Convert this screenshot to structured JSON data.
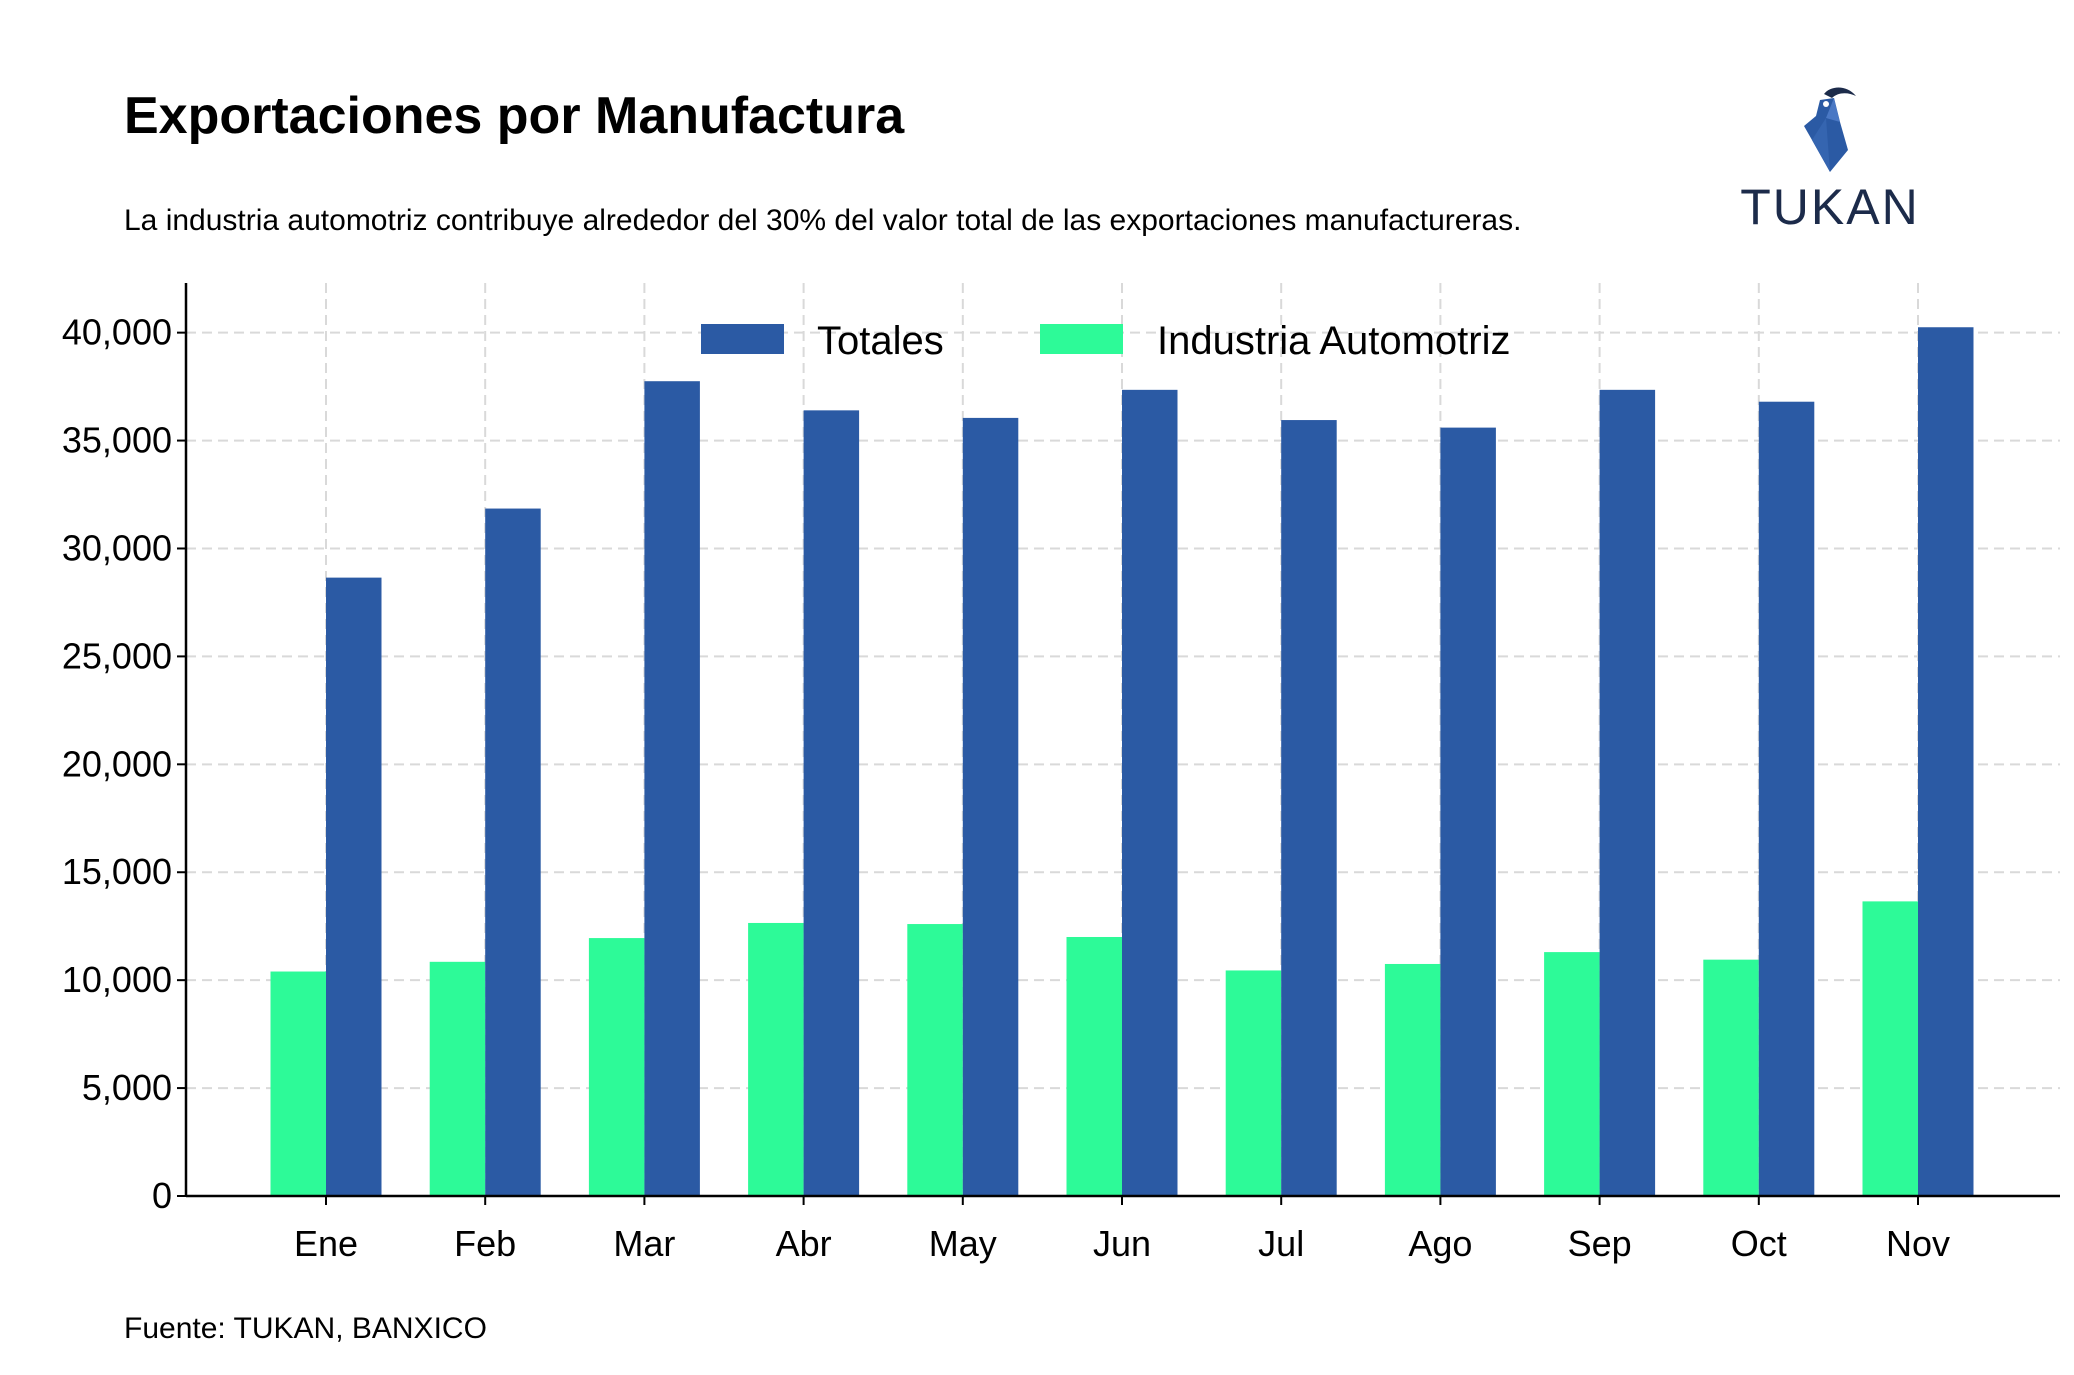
{
  "header": {
    "title": "Exportaciones por Manufactura",
    "subtitle": "La industria automotriz contribuye alrededor del 30% del valor total de las exportaciones manufactureras."
  },
  "footer": {
    "source": "Fuente: TUKAN, BANXICO"
  },
  "logo": {
    "text": "TUKAN",
    "icon": "toucan-logo-icon",
    "color": "#2b5aa4"
  },
  "chart_data": {
    "type": "bar",
    "title": "Exportaciones por Manufactura",
    "xlabel": "",
    "ylabel": "",
    "categories": [
      "Ene",
      "Feb",
      "Mar",
      "Abr",
      "May",
      "Jun",
      "Jul",
      "Ago",
      "Sep",
      "Oct",
      "Nov"
    ],
    "series": [
      {
        "name": "Industria Automotriz",
        "color": "#2dfa98",
        "values": [
          10400,
          10850,
          11950,
          12650,
          12600,
          12000,
          10450,
          10750,
          11300,
          10950,
          13650
        ]
      },
      {
        "name": "Totales",
        "color": "#2b5aa4",
        "values": [
          28650,
          31850,
          37750,
          36400,
          36050,
          37350,
          35950,
          35600,
          37350,
          36800,
          40250
        ]
      }
    ],
    "legend_order": [
      "Totales",
      "Industria Automotriz"
    ],
    "legend_position": "top-center",
    "ylim": [
      0,
      42300
    ],
    "yticks": [
      0,
      5000,
      10000,
      15000,
      20000,
      25000,
      30000,
      35000,
      40000
    ],
    "ytick_labels": [
      "0",
      "5,000",
      "10,000",
      "15,000",
      "20,000",
      "25,000",
      "30,000",
      "35,000",
      "40,000"
    ],
    "grid": true,
    "grid_style": "dashed"
  }
}
